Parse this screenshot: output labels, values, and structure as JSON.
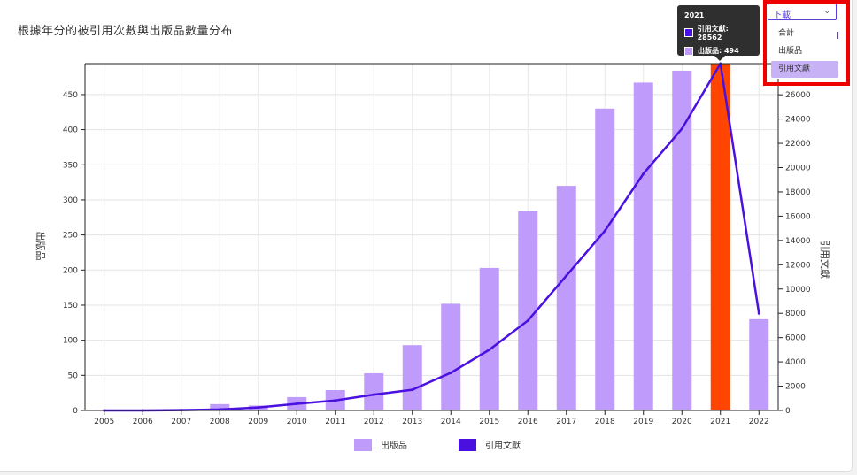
{
  "title": "根據年分的被引用次數與出版品數量分布",
  "dropdown": {
    "label": "下載",
    "options": [
      "合計",
      "出版品",
      "引用文獻"
    ],
    "selected_index": 2
  },
  "tooltip": {
    "year": "2021",
    "citations_text": "引用文獻: 28562",
    "publications_text": "出版品: 494"
  },
  "legend": {
    "publications": "出版品",
    "citations": "引用文獻"
  },
  "colors": {
    "bar": "#bf9cfb",
    "bar_highlight": "#ff4500",
    "line": "#4a10e0",
    "highlight_box": "#ee0000"
  },
  "chart_data": {
    "type": "bar+line",
    "categories": [
      "2005",
      "2006",
      "2007",
      "2008",
      "2009",
      "2010",
      "2011",
      "2012",
      "2013",
      "2014",
      "2015",
      "2016",
      "2017",
      "2018",
      "2019",
      "2020",
      "2021",
      "2022"
    ],
    "series": [
      {
        "name": "出版品",
        "type": "bar",
        "axis": "left",
        "values": [
          1,
          1,
          2,
          9,
          7,
          19,
          29,
          53,
          93,
          152,
          203,
          284,
          320,
          430,
          467,
          484,
          494,
          130
        ]
      },
      {
        "name": "引用文獻",
        "type": "line",
        "axis": "right",
        "values": [
          0,
          0,
          30,
          80,
          250,
          550,
          820,
          1300,
          1700,
          3100,
          5000,
          7400,
          11100,
          14800,
          19500,
          23200,
          28562,
          8000
        ]
      }
    ],
    "ylabel_left": "出版品",
    "ylabel_right": "引用文獻",
    "ylim_left": [
      0,
      494
    ],
    "yticks_left": [
      0,
      50,
      100,
      150,
      200,
      250,
      300,
      350,
      400,
      450
    ],
    "ylim_right": [
      0,
      28562
    ],
    "yticks_right": [
      0,
      2000,
      4000,
      6000,
      8000,
      10000,
      12000,
      14000,
      16000,
      18000,
      20000,
      22000,
      24000,
      26000
    ],
    "highlighted_category": "2021",
    "grid": true,
    "legend_position": "bottom"
  }
}
